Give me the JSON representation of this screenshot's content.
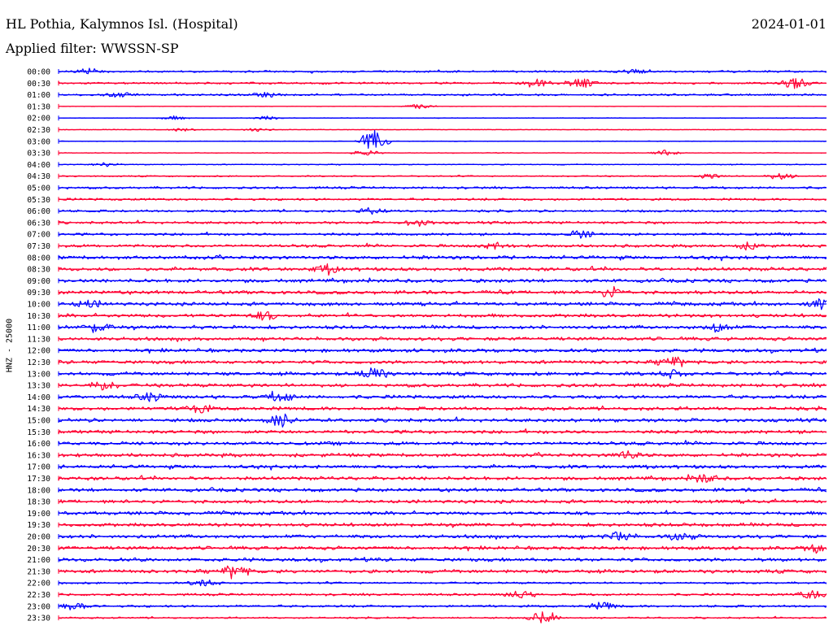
{
  "header": {
    "station": "HL Pothia, Kalymnos Isl. (Hospital)",
    "date": "2024-01-01",
    "filter": "Applied filter: WWSSN-SP"
  },
  "chart_data": {
    "type": "line",
    "ylabel": "HNZ - 25000",
    "rows": [
      {
        "time": "00:00",
        "color": "#0000ff",
        "activity": 0.3,
        "events": [
          {
            "x": 0.04,
            "amp": 0.35
          },
          {
            "x": 0.75,
            "amp": 0.3
          }
        ]
      },
      {
        "time": "00:30",
        "color": "#ff0033",
        "activity": 0.3,
        "events": [
          {
            "x": 0.62,
            "amp": 0.6
          },
          {
            "x": 0.68,
            "amp": 0.7
          },
          {
            "x": 0.96,
            "amp": 0.75
          }
        ]
      },
      {
        "time": "01:00",
        "color": "#0000ff",
        "activity": 0.3,
        "events": [
          {
            "x": 0.08,
            "amp": 0.3
          },
          {
            "x": 0.27,
            "amp": 0.3
          }
        ]
      },
      {
        "time": "01:30",
        "color": "#ff0033",
        "activity": 0.05,
        "events": [
          {
            "x": 0.47,
            "amp": 0.3
          }
        ]
      },
      {
        "time": "02:00",
        "color": "#0000ff",
        "activity": 0.1,
        "events": [
          {
            "x": 0.15,
            "amp": 0.25
          },
          {
            "x": 0.27,
            "amp": 0.25
          }
        ]
      },
      {
        "time": "02:30",
        "color": "#ff0033",
        "activity": 0.1,
        "events": [
          {
            "x": 0.16,
            "amp": 0.25
          },
          {
            "x": 0.26,
            "amp": 0.25
          }
        ]
      },
      {
        "time": "03:00",
        "color": "#0000ff",
        "activity": 0.1,
        "events": [
          {
            "x": 0.41,
            "amp": 1.6
          }
        ]
      },
      {
        "time": "03:30",
        "color": "#ff0033",
        "activity": 0.1,
        "events": [
          {
            "x": 0.4,
            "amp": 0.4
          },
          {
            "x": 0.79,
            "amp": 0.4
          }
        ]
      },
      {
        "time": "04:00",
        "color": "#0000ff",
        "activity": 0.15,
        "events": [
          {
            "x": 0.06,
            "amp": 0.3
          }
        ]
      },
      {
        "time": "04:30",
        "color": "#ff0033",
        "activity": 0.2,
        "events": [
          {
            "x": 0.85,
            "amp": 0.35
          },
          {
            "x": 0.94,
            "amp": 0.45
          }
        ]
      },
      {
        "time": "05:00",
        "color": "#0000ff",
        "activity": 0.35,
        "events": []
      },
      {
        "time": "05:30",
        "color": "#ff0033",
        "activity": 0.35,
        "events": []
      },
      {
        "time": "06:00",
        "color": "#0000ff",
        "activity": 0.35,
        "events": [
          {
            "x": 0.41,
            "amp": 0.4
          }
        ]
      },
      {
        "time": "06:30",
        "color": "#ff0033",
        "activity": 0.4,
        "events": [
          {
            "x": 0.47,
            "amp": 0.45
          }
        ]
      },
      {
        "time": "07:00",
        "color": "#0000ff",
        "activity": 0.4,
        "events": [
          {
            "x": 0.68,
            "amp": 0.5
          }
        ]
      },
      {
        "time": "07:30",
        "color": "#ff0033",
        "activity": 0.45,
        "events": [
          {
            "x": 0.57,
            "amp": 0.45
          },
          {
            "x": 0.9,
            "amp": 0.45
          }
        ]
      },
      {
        "time": "08:00",
        "color": "#0000ff",
        "activity": 0.55,
        "events": []
      },
      {
        "time": "08:30",
        "color": "#ff0033",
        "activity": 0.55,
        "events": [
          {
            "x": 0.35,
            "amp": 0.5
          }
        ]
      },
      {
        "time": "09:00",
        "color": "#0000ff",
        "activity": 0.55,
        "events": []
      },
      {
        "time": "09:30",
        "color": "#ff0033",
        "activity": 0.55,
        "events": [
          {
            "x": 0.72,
            "amp": 0.7
          }
        ]
      },
      {
        "time": "10:00",
        "color": "#0000ff",
        "activity": 0.55,
        "events": [
          {
            "x": 0.04,
            "amp": 0.5
          },
          {
            "x": 0.99,
            "amp": 0.6
          }
        ]
      },
      {
        "time": "10:30",
        "color": "#ff0033",
        "activity": 0.55,
        "events": [
          {
            "x": 0.27,
            "amp": 0.5
          }
        ]
      },
      {
        "time": "11:00",
        "color": "#0000ff",
        "activity": 0.55,
        "events": [
          {
            "x": 0.05,
            "amp": 0.6
          },
          {
            "x": 0.86,
            "amp": 0.6
          }
        ]
      },
      {
        "time": "11:30",
        "color": "#ff0033",
        "activity": 0.55,
        "events": []
      },
      {
        "time": "12:00",
        "color": "#0000ff",
        "activity": 0.55,
        "events": []
      },
      {
        "time": "12:30",
        "color": "#ff0033",
        "activity": 0.55,
        "events": [
          {
            "x": 0.8,
            "amp": 0.6
          }
        ]
      },
      {
        "time": "13:00",
        "color": "#0000ff",
        "activity": 0.55,
        "events": [
          {
            "x": 0.41,
            "amp": 0.9
          },
          {
            "x": 0.8,
            "amp": 0.5
          }
        ]
      },
      {
        "time": "13:30",
        "color": "#ff0033",
        "activity": 0.55,
        "events": [
          {
            "x": 0.06,
            "amp": 0.6
          }
        ]
      },
      {
        "time": "14:00",
        "color": "#0000ff",
        "activity": 0.55,
        "events": [
          {
            "x": 0.12,
            "amp": 0.5
          },
          {
            "x": 0.29,
            "amp": 0.6
          }
        ]
      },
      {
        "time": "14:30",
        "color": "#ff0033",
        "activity": 0.55,
        "events": [
          {
            "x": 0.18,
            "amp": 0.6
          }
        ]
      },
      {
        "time": "15:00",
        "color": "#0000ff",
        "activity": 0.55,
        "events": [
          {
            "x": 0.29,
            "amp": 0.9
          }
        ]
      },
      {
        "time": "15:30",
        "color": "#ff0033",
        "activity": 0.55,
        "events": []
      },
      {
        "time": "16:00",
        "color": "#0000ff",
        "activity": 0.55,
        "events": []
      },
      {
        "time": "16:30",
        "color": "#ff0033",
        "activity": 0.55,
        "events": [
          {
            "x": 0.74,
            "amp": 0.5
          }
        ]
      },
      {
        "time": "17:00",
        "color": "#0000ff",
        "activity": 0.55,
        "events": []
      },
      {
        "time": "17:30",
        "color": "#ff0033",
        "activity": 0.55,
        "events": [
          {
            "x": 0.84,
            "amp": 0.5
          }
        ]
      },
      {
        "time": "18:00",
        "color": "#0000ff",
        "activity": 0.55,
        "events": []
      },
      {
        "time": "18:30",
        "color": "#ff0033",
        "activity": 0.55,
        "events": []
      },
      {
        "time": "19:00",
        "color": "#0000ff",
        "activity": 0.55,
        "events": []
      },
      {
        "time": "19:30",
        "color": "#ff0033",
        "activity": 0.55,
        "events": []
      },
      {
        "time": "20:00",
        "color": "#0000ff",
        "activity": 0.55,
        "events": [
          {
            "x": 0.73,
            "amp": 0.6
          },
          {
            "x": 0.81,
            "amp": 0.5
          }
        ]
      },
      {
        "time": "20:30",
        "color": "#ff0033",
        "activity": 0.55,
        "events": [
          {
            "x": 0.99,
            "amp": 0.5
          }
        ]
      },
      {
        "time": "21:00",
        "color": "#0000ff",
        "activity": 0.55,
        "events": []
      },
      {
        "time": "21:30",
        "color": "#ff0033",
        "activity": 0.55,
        "events": [
          {
            "x": 0.23,
            "amp": 0.8
          }
        ]
      },
      {
        "time": "22:00",
        "color": "#0000ff",
        "activity": 0.3,
        "events": [
          {
            "x": 0.19,
            "amp": 0.5
          }
        ]
      },
      {
        "time": "22:30",
        "color": "#ff0033",
        "activity": 0.35,
        "events": [
          {
            "x": 0.6,
            "amp": 0.5
          },
          {
            "x": 0.98,
            "amp": 0.6
          }
        ]
      },
      {
        "time": "23:00",
        "color": "#0000ff",
        "activity": 0.35,
        "events": [
          {
            "x": 0.02,
            "amp": 0.6
          },
          {
            "x": 0.71,
            "amp": 0.5
          }
        ]
      },
      {
        "time": "23:30",
        "color": "#ff0033",
        "activity": 0.25,
        "events": [
          {
            "x": 0.63,
            "amp": 0.8
          }
        ]
      }
    ]
  }
}
